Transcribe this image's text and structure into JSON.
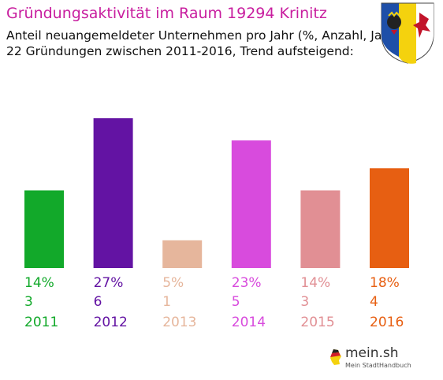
{
  "title": "Gründungsaktivität im Raum 19294 Krinitz",
  "subtitle_line1": "Anteil neuangemeldeter Unternehmen pro Jahr (%, Anzahl, Jahr)",
  "subtitle_line2": "22 Gründungen zwischen 2011-2016, Trend aufsteigend:",
  "logo": {
    "name": "mein.sh",
    "tagline": "Mein StadtHandbuch"
  },
  "chart_data": {
    "type": "bar",
    "categories": [
      "2011",
      "2012",
      "2013",
      "2014",
      "2015",
      "2016"
    ],
    "values": [
      14,
      27,
      5,
      23,
      14,
      18
    ],
    "counts": [
      3,
      6,
      1,
      5,
      3,
      4
    ],
    "percent_labels": [
      "14%",
      "27%",
      "5%",
      "23%",
      "14%",
      "18%"
    ],
    "colors": [
      "#12a92a",
      "#6313a3",
      "#e6b69c",
      "#d84bdd",
      "#e18f94",
      "#e75f12"
    ],
    "ylim": [
      0,
      27
    ],
    "grid": false,
    "title": "Gründungsaktivität im Raum 19294 Krinitz",
    "xlabel": "",
    "ylabel": ""
  }
}
